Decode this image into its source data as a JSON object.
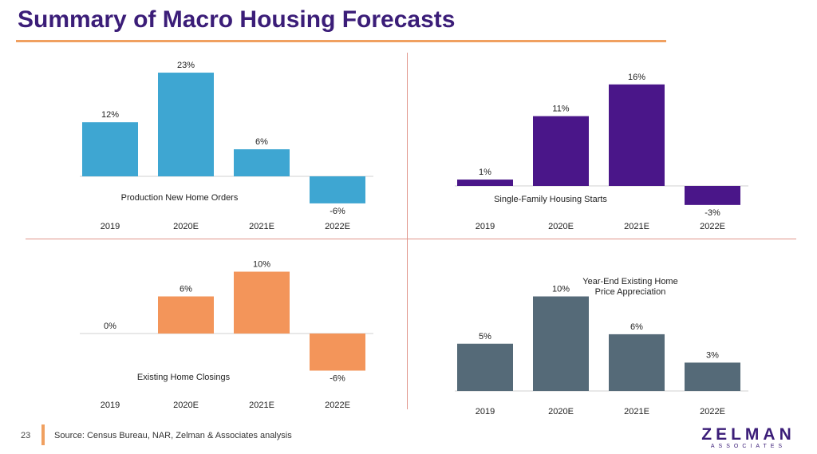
{
  "header": {
    "title": "Summary of Macro Housing Forecasts"
  },
  "footer": {
    "page_number": "23",
    "source": "Source: Census Bureau, NAR, Zelman & Associates analysis",
    "logo_main": "ZELMAN",
    "logo_sub": "ASSOCIATES"
  },
  "chart_data": [
    {
      "type": "bar",
      "title": "Production New Home Orders",
      "categories": [
        "2019",
        "2020E",
        "2021E",
        "2022E"
      ],
      "values": [
        12,
        23,
        6,
        -6
      ],
      "labels": [
        "12%",
        "23%",
        "6%",
        "-6%"
      ],
      "color": "#3ea6d2"
    },
    {
      "type": "bar",
      "title": "Single-Family Housing Starts",
      "categories": [
        "2019",
        "2020E",
        "2021E",
        "2022E"
      ],
      "values": [
        1,
        11,
        16,
        -3
      ],
      "labels": [
        "1%",
        "11%",
        "16%",
        "-3%"
      ],
      "color": "#4a1689"
    },
    {
      "type": "bar",
      "title": "Existing Home Closings",
      "categories": [
        "2019",
        "2020E",
        "2021E",
        "2022E"
      ],
      "values": [
        0,
        6,
        10,
        -6
      ],
      "labels": [
        "0%",
        "6%",
        "10%",
        "-6%"
      ],
      "color": "#f3955a"
    },
    {
      "type": "bar",
      "title": "Year-End Existing Home\nPrice Appreciation",
      "categories": [
        "2019",
        "2020E",
        "2021E",
        "2022E"
      ],
      "values": [
        5,
        10,
        6,
        3
      ],
      "labels": [
        "5%",
        "10%",
        "6%",
        "3%"
      ],
      "color": "#556a78"
    }
  ]
}
